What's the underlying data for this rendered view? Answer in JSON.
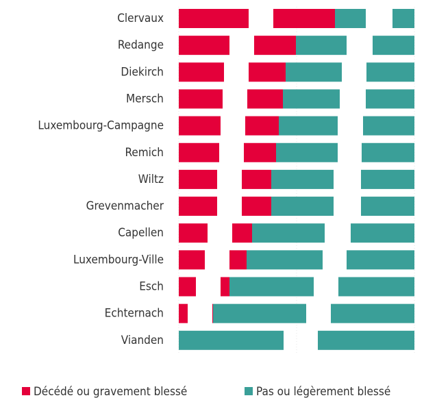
{
  "chart_data": {
    "type": "bar",
    "categories": [
      "Clervaux",
      "Redange",
      "Diekirch",
      "Mersch",
      "Luxembourg-Campagne",
      "Remich",
      "Wiltz",
      "Grevenmacher",
      "Capellen",
      "Luxembourg-Ville",
      "Esch",
      "Echternach",
      "Vianden"
    ],
    "series": [
      {
        "name": "Décédé ou gravement blessé",
        "color": "#e4003a",
        "values": [
          90,
          61,
          54,
          52,
          49,
          47,
          43,
          43,
          29,
          25,
          13,
          1,
          0
        ],
        "solo_values": [
          102,
          74,
          66,
          64,
          61,
          59,
          56,
          56,
          42,
          38,
          25,
          13,
          0
        ]
      },
      {
        "name": "Pas ou légèrement blessé",
        "color": "#3a9f98",
        "values": [
          45,
          74,
          82,
          83,
          86,
          90,
          91,
          91,
          106,
          111,
          123,
          136,
          153
        ],
        "solo_values": [
          32,
          61,
          70,
          71,
          75,
          77,
          78,
          78,
          93,
          99,
          111,
          122,
          141
        ]
      }
    ]
  }
}
